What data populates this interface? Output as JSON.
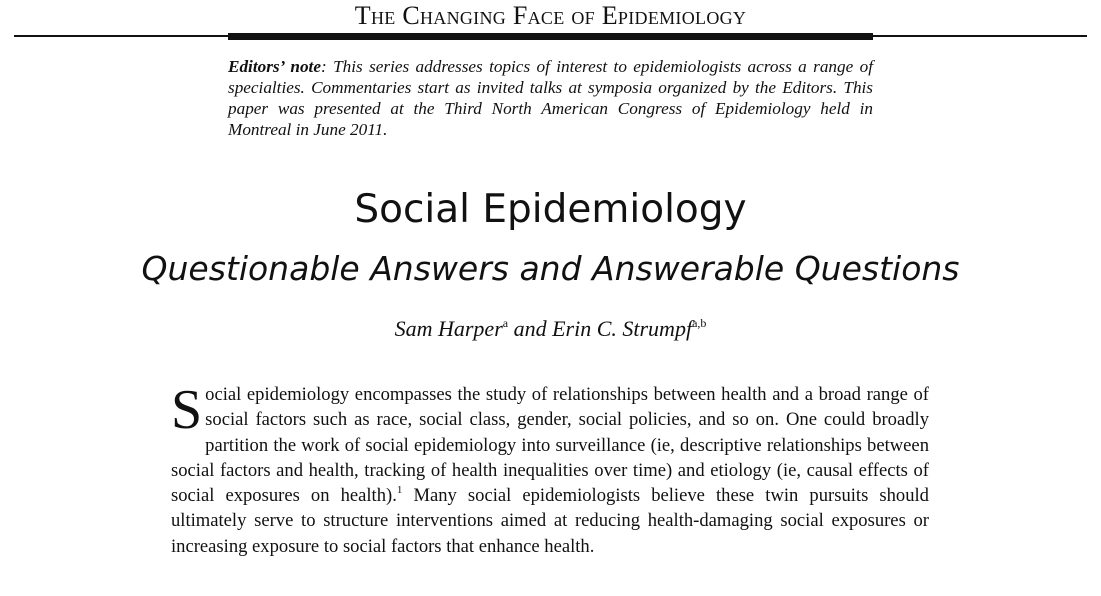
{
  "header": {
    "series_title": "The Changing Face of Epidemiology"
  },
  "editors_note": {
    "label": "Editors’ note",
    "text": ": This series addresses topics of interest to epidemiologists across a range of specialties. Commentaries start as invited talks at symposia organized by the Editors. This paper was presented at the Third North American Congress of Epidemiology held in Montreal in June 2011."
  },
  "article": {
    "title": "Social Epidemiology",
    "subtitle": "Questionable Answers and Answerable Questions",
    "authors": [
      {
        "name": "Sam Harper",
        "affiliation": "a"
      },
      {
        "name": "Erin C. Strumpf",
        "affiliation": "a,b"
      }
    ],
    "author_joiner": "and"
  },
  "body": {
    "drop_cap": "S",
    "text_part1": "ocial epidemiology encompasses the study of relationships between health and a broad range of social factors such as race, social class, gender, social policies, and so on. One could broadly partition the work of social epidemiology into surveillance (ie, descriptive relationships between social factors and health, tracking of health inequalities over time) and etiology (ie, causal effects of social exposures on health).",
    "reference_mark": "1",
    "text_part2": " Many social epidemiolo­gists believe these twin pursuits should ultimately serve to structure interventions aimed at reducing health-damaging social exposures or increasing exposure to social factors that enhance health."
  }
}
